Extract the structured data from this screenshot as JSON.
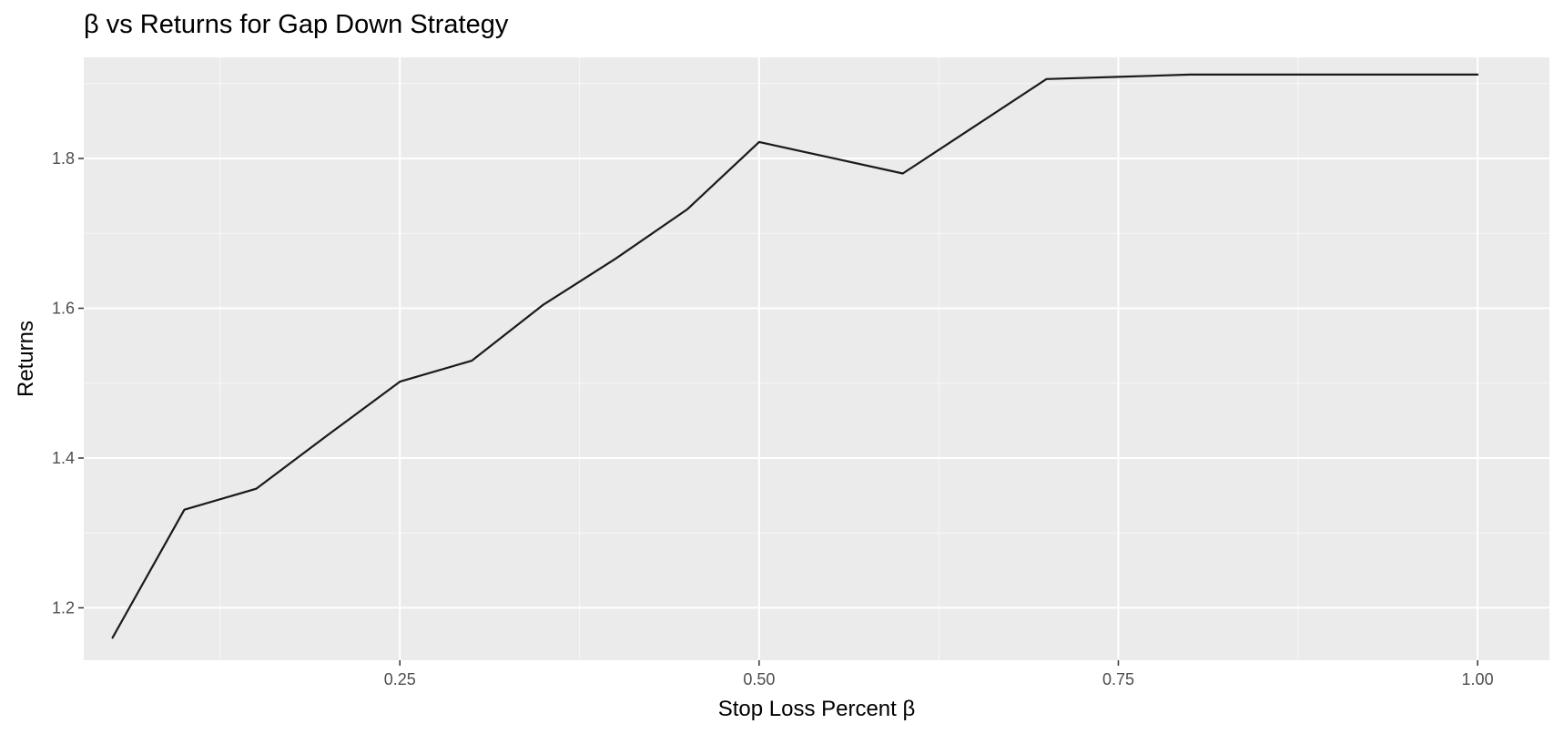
{
  "chart_data": {
    "type": "line",
    "title": "β vs Returns for Gap Down Strategy",
    "xlabel": "Stop Loss Percent β",
    "ylabel": "Returns",
    "xlim": [
      0.03,
      1.05
    ],
    "ylim": [
      1.13,
      1.935
    ],
    "x_ticks": [
      0.25,
      0.5,
      0.75,
      1.0
    ],
    "x_tick_labels": [
      "0.25",
      "0.50",
      "0.75",
      "1.00"
    ],
    "y_ticks": [
      1.2,
      1.4,
      1.6,
      1.8
    ],
    "y_tick_labels": [
      "1.2",
      "1.4",
      "1.6",
      "1.8"
    ],
    "grid": true,
    "series": [
      {
        "color": "#1a1a1a",
        "x": [
          0.05,
          0.1,
          0.15,
          0.2,
          0.25,
          0.3,
          0.35,
          0.4,
          0.45,
          0.5,
          0.55,
          0.6,
          0.65,
          0.7,
          0.75,
          0.8,
          0.85,
          0.9,
          0.95,
          1.0
        ],
        "y": [
          1.16,
          1.331,
          1.359,
          1.431,
          1.502,
          1.53,
          1.605,
          1.666,
          1.732,
          1.822,
          1.801,
          1.78,
          1.843,
          1.906,
          1.909,
          1.912,
          1.912,
          1.912,
          1.912,
          1.912
        ]
      }
    ]
  },
  "colors": {
    "panel_background": "#ebebeb",
    "grid_major": "#ffffff",
    "line": "#1a1a1a",
    "tick_label": "#4d4d4d"
  }
}
